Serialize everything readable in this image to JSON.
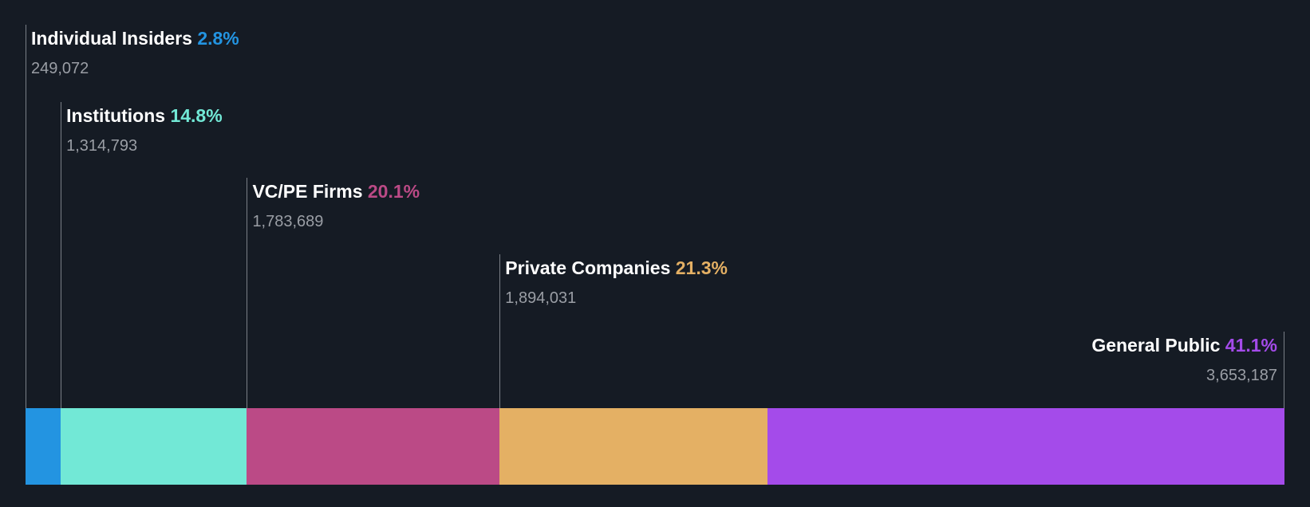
{
  "chart_data": {
    "type": "bar",
    "subtype": "stacked-horizontal-100",
    "title": "",
    "categories": [
      "Individual Insiders",
      "Institutions",
      "VC/PE Firms",
      "Private Companies",
      "General Public"
    ],
    "percent_labels": [
      "2.8%",
      "14.8%",
      "20.1%",
      "21.3%",
      "41.1%"
    ],
    "values": [
      2.8,
      14.8,
      20.1,
      21.3,
      41.1
    ],
    "shares": [
      "249,072",
      "1,314,793",
      "1,783,689",
      "1,894,031",
      "3,653,187"
    ],
    "colors": [
      "#2394e1",
      "#72e8d6",
      "#bb4a86",
      "#e4b064",
      "#a44bea"
    ]
  }
}
